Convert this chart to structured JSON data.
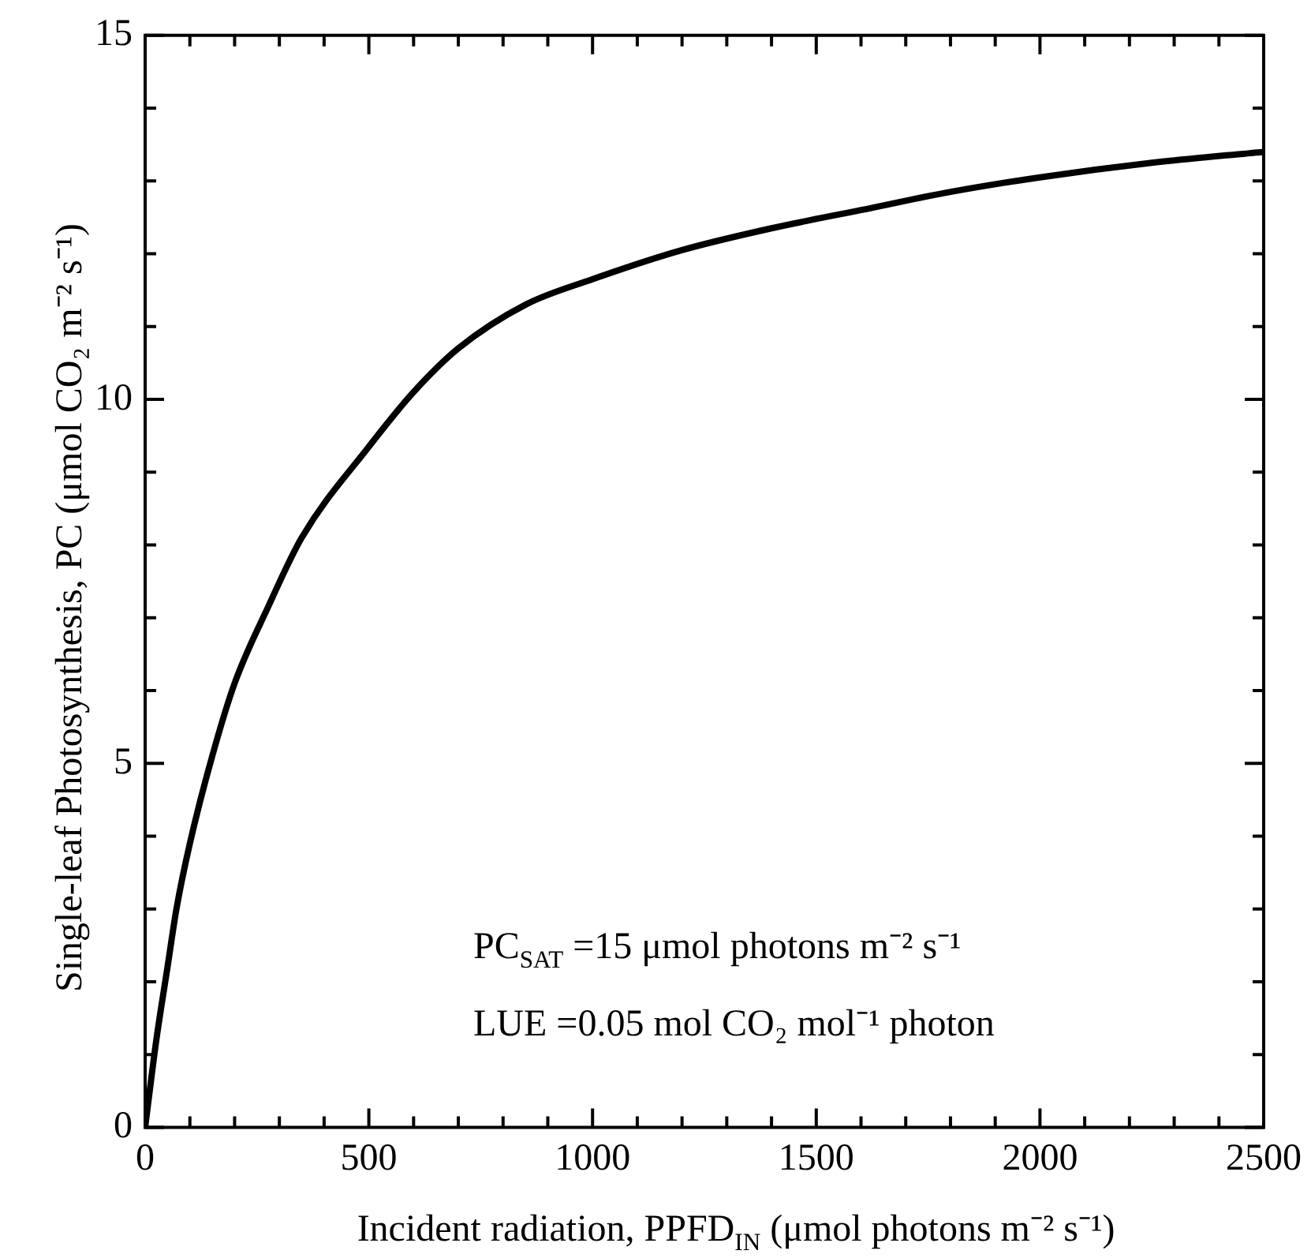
{
  "chart_data": {
    "type": "line",
    "xlabel": "Incident radiation, PPFD$_{IN}$ (μmol photons m⁻² s⁻¹)",
    "ylabel": "Single-leaf Photosynthesis, PC (μmol CO₂ m⁻² s⁻¹)",
    "annotations": [
      "PC$_{SAT}$ =15 μmol photons m⁻² s⁻¹",
      "LUE =0.05 mol CO₂ mol⁻¹ photon"
    ],
    "x": [
      0,
      25,
      50,
      70,
      100,
      150,
      200,
      275,
      350,
      500,
      600,
      700,
      850,
      1000,
      1200,
      1400,
      1600,
      1800,
      2000,
      2250,
      2500
    ],
    "series": [
      {
        "color": "#000000",
        "values": [
          0,
          1.2,
          2.2,
          3.0,
          3.9,
          5.1,
          6.1,
          7.15,
          8.1,
          9.35,
          10.1,
          10.7,
          11.3,
          11.65,
          12.05,
          12.35,
          12.6,
          12.85,
          13.05,
          13.25,
          13.4
        ]
      }
    ],
    "xlim": [
      0,
      2500
    ],
    "xticks": [
      0,
      {
        "value": 100,
        "label": null
      },
      {
        "value": 200,
        "label": null
      },
      {
        "value": 300,
        "label": null
      },
      {
        "value": 400,
        "label": null
      },
      500,
      {
        "value": 600,
        "label": null
      },
      {
        "value": 700,
        "label": null
      },
      {
        "value": 800,
        "label": null
      },
      {
        "value": 900,
        "label": null
      },
      1000,
      {
        "value": 1100,
        "label": null
      },
      {
        "value": 1200,
        "label": null
      },
      {
        "value": 1300,
        "label": null
      },
      {
        "value": 1400,
        "label": null
      },
      1500,
      {
        "value": 1600,
        "label": null
      },
      {
        "value": 1700,
        "label": null
      },
      {
        "value": 1800,
        "label": null
      },
      {
        "value": 1900,
        "label": null
      },
      2000,
      {
        "value": 2100,
        "label": null
      },
      {
        "value": 2200,
        "label": null
      },
      {
        "value": 2300,
        "label": null
      },
      {
        "value": 2400,
        "label": null
      },
      2500
    ],
    "ylim": [
      0,
      15
    ],
    "yticks": [
      0,
      {
        "value": 1,
        "label": null
      },
      {
        "value": 2,
        "label": null
      },
      {
        "value": 3,
        "label": null
      },
      {
        "value": 4,
        "label": null
      },
      5,
      {
        "value": 6,
        "label": null
      },
      {
        "value": 7,
        "label": null
      },
      {
        "value": 8,
        "label": null
      },
      {
        "value": 9,
        "label": null
      },
      10,
      {
        "value": 11,
        "label": null
      },
      {
        "value": 12,
        "label": null
      },
      {
        "value": 13,
        "label": null
      },
      {
        "value": 14,
        "label": null
      },
      15
    ],
    "grid": false,
    "legend": false,
    "marker": "none",
    "line_style": "solid"
  }
}
